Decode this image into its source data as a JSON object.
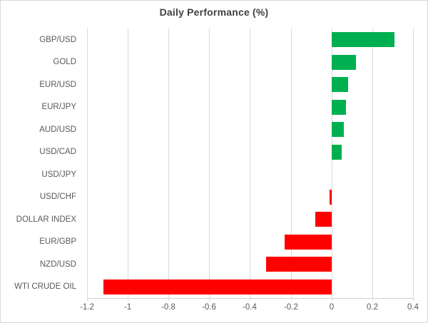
{
  "title": "Daily Performance (%)",
  "colors": {
    "positive_bar": "#00B050",
    "negative_bar": "#FF0000",
    "gridline": "#D9D9D9",
    "axis_text": "#595959",
    "title_text": "#404040"
  },
  "chart_data": {
    "type": "bar",
    "orientation": "horizontal",
    "title": "Daily Performance (%)",
    "xlabel": "",
    "ylabel": "",
    "categories": [
      "GBP/USD",
      "GOLD",
      "EUR/USD",
      "EUR/JPY",
      "AUD/USD",
      "USD/CAD",
      "USD/JPY",
      "USD/CHF",
      "DOLLAR INDEX",
      "EUR/GBP",
      "NZD/USD",
      "WTI CRUDE OIL"
    ],
    "values": [
      0.31,
      0.12,
      0.08,
      0.07,
      0.06,
      0.05,
      0.0,
      -0.01,
      -0.08,
      -0.23,
      -0.32,
      -1.12
    ],
    "xlim": [
      -1.2,
      0.4
    ],
    "x_ticks": [
      -1.2,
      -1.0,
      -0.8,
      -0.6,
      -0.4,
      -0.2,
      0.0,
      0.2,
      0.4
    ],
    "x_tick_labels": [
      "-1.2",
      "-1",
      "-0.8",
      "-0.6",
      "-0.4",
      "-0.2",
      "0",
      "0.2",
      "0.4"
    ],
    "grid": true,
    "legend": false,
    "bar_color_rule": "green if value > 0, red if value < 0, no bar if 0"
  }
}
